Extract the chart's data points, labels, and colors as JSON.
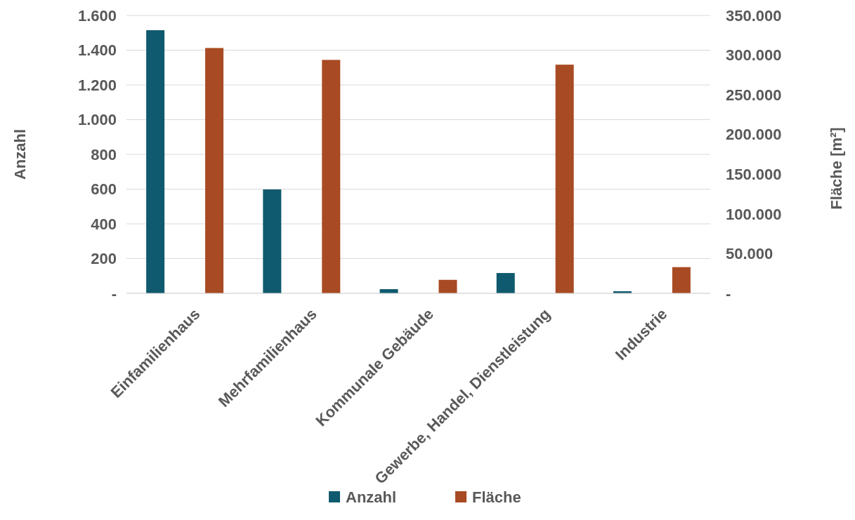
{
  "chart_data": {
    "type": "bar",
    "categories": [
      "Einfamilienhaus",
      "Mehrfamilienhaus",
      "Kommunale Gebäude",
      "Gewerbe, Handel, Dienstleistung",
      "Industrie"
    ],
    "series": [
      {
        "name": "Anzahl",
        "color": "#0f5a6e",
        "values": [
          1515,
          598,
          24,
          117,
          12
        ]
      },
      {
        "name": "Fläche",
        "color": "#a84a23",
        "axis": "y2",
        "values": [
          309000,
          294000,
          17000,
          288000,
          33000
        ]
      }
    ],
    "ylabel": "Anzahl",
    "y2label": "Fläche [m²]",
    "ylim": [
      0,
      1600
    ],
    "yticks": [
      {
        "value": 0,
        "label": "-"
      },
      200,
      400,
      600,
      800,
      {
        "value": 1000,
        "label": "1.000"
      },
      {
        "value": 1200,
        "label": "1.200"
      },
      {
        "value": 1400,
        "label": "1.400"
      },
      {
        "value": 1600,
        "label": "1.600"
      }
    ],
    "y2lim": [
      0,
      350000
    ],
    "y2ticks": [
      {
        "value": 0,
        "label": "-"
      },
      {
        "value": 50000,
        "label": "50.000"
      },
      {
        "value": 100000,
        "label": "100.000"
      },
      {
        "value": 150000,
        "label": "150.000"
      },
      {
        "value": 200000,
        "label": "200.000"
      },
      {
        "value": 250000,
        "label": "250.000"
      },
      {
        "value": 300000,
        "label": "300.000"
      },
      {
        "value": 350000,
        "label": "350.000"
      }
    ],
    "grid": "y",
    "legend": "bottom"
  }
}
